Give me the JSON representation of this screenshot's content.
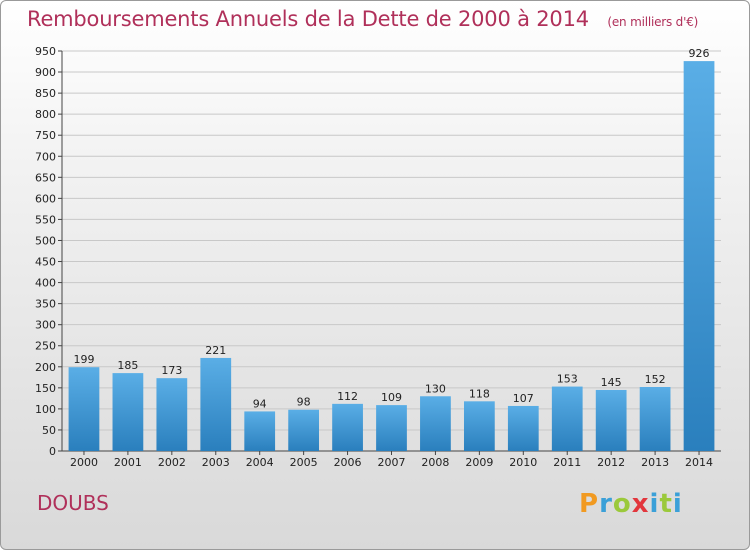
{
  "title": "Remboursements Annuels de la Dette de 2000 à 2014",
  "unit": "(en milliers d'€)",
  "region": "DOUBS",
  "logo": {
    "letters": [
      "P",
      "r",
      "o",
      "x",
      "i",
      "t",
      "i"
    ],
    "colors": [
      "#f19a21",
      "#3aa0d8",
      "#9bc93b",
      "#e2363d",
      "#3aa0d8",
      "#9bc93b",
      "#3aa0d8"
    ]
  },
  "colors": {
    "bar_light": "#5aaee6",
    "bar_dark": "#2a7fbd",
    "title": "#b0305a"
  },
  "chart_data": {
    "type": "bar",
    "title": "Remboursements Annuels de la Dette de 2000 à 2014",
    "categories": [
      "2000",
      "2001",
      "2002",
      "2003",
      "2004",
      "2005",
      "2006",
      "2007",
      "2008",
      "2009",
      "2010",
      "2011",
      "2012",
      "2013",
      "2014"
    ],
    "values": [
      199,
      185,
      173,
      221,
      94,
      98,
      112,
      109,
      130,
      118,
      107,
      153,
      145,
      152,
      926
    ],
    "ylim": [
      0,
      950
    ],
    "yticks": [
      0,
      50,
      100,
      150,
      200,
      250,
      300,
      350,
      400,
      450,
      500,
      550,
      600,
      650,
      700,
      750,
      800,
      850,
      900,
      950
    ],
    "grid": true,
    "data_labels": true
  }
}
